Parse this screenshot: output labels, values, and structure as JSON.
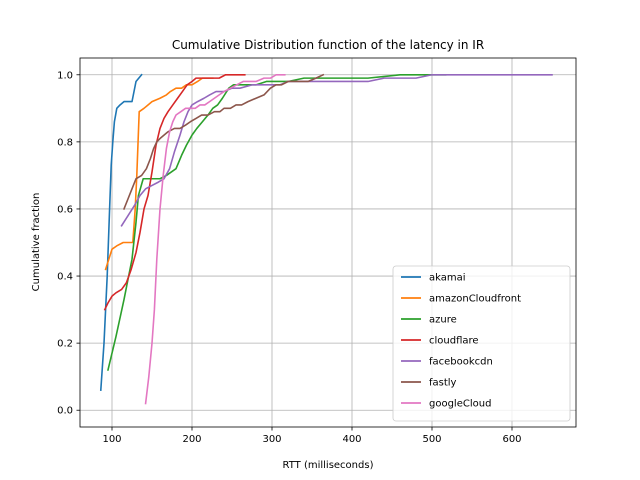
{
  "chart_data": {
    "type": "line",
    "title": "Cumulative Distribution function of the latency in IR",
    "xlabel": "RTT (milliseconds)",
    "ylabel": "Cumulative fraction",
    "xlim": [
      60,
      680
    ],
    "ylim": [
      -0.05,
      1.05
    ],
    "xticks": [
      100,
      200,
      300,
      400,
      500,
      600
    ],
    "yticks": [
      0.0,
      0.2,
      0.4,
      0.6,
      0.8,
      1.0
    ],
    "xtick_labels": [
      "100",
      "200",
      "300",
      "400",
      "500",
      "600"
    ],
    "ytick_labels": [
      "0.0",
      "0.2",
      "0.4",
      "0.6",
      "0.8",
      "1.0"
    ],
    "grid": true,
    "legend_position": "lower-right",
    "series": [
      {
        "name": "akamai",
        "color": "#1f77b4",
        "x": [
          86,
          90,
          94,
          97,
          99,
          101,
          103,
          106,
          110,
          115,
          120,
          125,
          130,
          137
        ],
        "y": [
          0.06,
          0.2,
          0.4,
          0.6,
          0.73,
          0.8,
          0.86,
          0.9,
          0.91,
          0.92,
          0.92,
          0.92,
          0.98,
          1.0
        ]
      },
      {
        "name": "amazonCloudfront",
        "color": "#ff7f0e",
        "x": [
          92,
          96,
          100,
          106,
          114,
          120,
          126,
          129,
          131,
          134,
          140,
          145,
          150,
          160,
          168,
          173,
          180,
          187,
          193,
          200,
          207,
          213,
          220,
          226
        ],
        "y": [
          0.42,
          0.45,
          0.48,
          0.49,
          0.5,
          0.5,
          0.5,
          0.6,
          0.7,
          0.89,
          0.9,
          0.91,
          0.92,
          0.93,
          0.94,
          0.95,
          0.96,
          0.96,
          0.97,
          0.97,
          0.98,
          0.99,
          0.99,
          0.99
        ]
      },
      {
        "name": "azure",
        "color": "#2ca02c",
        "x": [
          95,
          105,
          115,
          125,
          130,
          133,
          139,
          145,
          152,
          160,
          168,
          174,
          180,
          187,
          193,
          200,
          206,
          213,
          220,
          226,
          232,
          238,
          246,
          252,
          260,
          270,
          280,
          293,
          305,
          320,
          340,
          360,
          380,
          420,
          460,
          500,
          517
        ],
        "y": [
          0.12,
          0.22,
          0.33,
          0.45,
          0.56,
          0.64,
          0.69,
          0.69,
          0.69,
          0.69,
          0.7,
          0.71,
          0.72,
          0.76,
          0.79,
          0.82,
          0.84,
          0.86,
          0.88,
          0.9,
          0.91,
          0.93,
          0.96,
          0.97,
          0.97,
          0.97,
          0.97,
          0.98,
          0.98,
          0.98,
          0.99,
          0.99,
          0.99,
          0.99,
          1.0,
          1.0,
          1.0
        ]
      },
      {
        "name": "cloudflare",
        "color": "#d62728",
        "x": [
          91,
          95,
          100,
          105,
          112,
          118,
          124,
          130,
          135,
          140,
          145,
          150,
          155,
          160,
          165,
          170,
          176,
          182,
          188,
          194,
          200,
          205,
          210,
          218,
          226,
          234,
          242,
          250,
          258,
          266
        ],
        "y": [
          0.3,
          0.32,
          0.34,
          0.35,
          0.36,
          0.38,
          0.42,
          0.47,
          0.53,
          0.6,
          0.64,
          0.71,
          0.79,
          0.84,
          0.87,
          0.89,
          0.91,
          0.93,
          0.95,
          0.97,
          0.98,
          0.99,
          0.99,
          0.99,
          0.99,
          0.99,
          1.0,
          1.0,
          1.0,
          1.0
        ]
      },
      {
        "name": "facebookcdn",
        "color": "#9467bd",
        "x": [
          112,
          120,
          128,
          135,
          142,
          150,
          158,
          165,
          172,
          178,
          185,
          190,
          195,
          200,
          207,
          215,
          222,
          230,
          240,
          250,
          260,
          275,
          290,
          300,
          310,
          320,
          340,
          360,
          380,
          400,
          420,
          440,
          460,
          480,
          500,
          520,
          560,
          600,
          630,
          650
        ],
        "y": [
          0.55,
          0.58,
          0.61,
          0.64,
          0.66,
          0.67,
          0.68,
          0.69,
          0.72,
          0.77,
          0.82,
          0.86,
          0.89,
          0.91,
          0.92,
          0.93,
          0.94,
          0.95,
          0.95,
          0.96,
          0.96,
          0.97,
          0.97,
          0.97,
          0.97,
          0.98,
          0.98,
          0.98,
          0.98,
          0.98,
          0.98,
          0.99,
          0.99,
          0.99,
          1.0,
          1.0,
          1.0,
          1.0,
          1.0,
          1.0
        ]
      },
      {
        "name": "fastly",
        "color": "#8c564b",
        "x": [
          115,
          120,
          125,
          130,
          137,
          143,
          148,
          152,
          156,
          160,
          165,
          170,
          178,
          185,
          192,
          198,
          205,
          212,
          220,
          228,
          235,
          240,
          248,
          255,
          262,
          270,
          280,
          290,
          298,
          305,
          312,
          320,
          335,
          345,
          355,
          364
        ],
        "y": [
          0.6,
          0.63,
          0.66,
          0.69,
          0.7,
          0.72,
          0.75,
          0.78,
          0.8,
          0.81,
          0.82,
          0.83,
          0.84,
          0.84,
          0.85,
          0.86,
          0.87,
          0.88,
          0.88,
          0.89,
          0.89,
          0.9,
          0.9,
          0.91,
          0.91,
          0.92,
          0.93,
          0.94,
          0.96,
          0.97,
          0.97,
          0.98,
          0.98,
          0.98,
          0.99,
          1.0
        ]
      },
      {
        "name": "googleCloud",
        "color": "#e377c2",
        "x": [
          142,
          146,
          150,
          153,
          156,
          160,
          164,
          168,
          172,
          176,
          180,
          186,
          192,
          198,
          204,
          210,
          216,
          222,
          228,
          234,
          240,
          248,
          256,
          264,
          272,
          280,
          290,
          298,
          305,
          311,
          316
        ],
        "y": [
          0.02,
          0.1,
          0.2,
          0.3,
          0.45,
          0.6,
          0.7,
          0.78,
          0.83,
          0.86,
          0.88,
          0.89,
          0.9,
          0.9,
          0.9,
          0.91,
          0.91,
          0.92,
          0.93,
          0.94,
          0.95,
          0.96,
          0.97,
          0.98,
          0.98,
          0.98,
          0.99,
          0.99,
          1.0,
          1.0,
          1.0
        ]
      }
    ]
  }
}
